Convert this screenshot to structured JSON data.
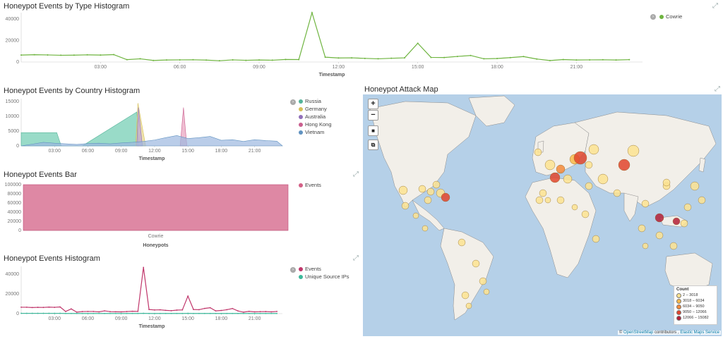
{
  "panels": {
    "type_hist": {
      "title": "Honeypot Events by Type Histogram",
      "xlabel": "Timestamp"
    },
    "country_hist": {
      "title": "Honeypot Events by Country Histogram",
      "xlabel": "Timestamp"
    },
    "bar": {
      "title": "Honeypot Events Bar",
      "xlabel": "Honeypots"
    },
    "events_hist": {
      "title": "Honeypot Events Histogram",
      "xlabel": "Timestamp"
    },
    "map": {
      "title": "Honeypot Attack Map"
    }
  },
  "map": {
    "zoom_in": "+",
    "zoom_out": "−",
    "draw_rect": "■",
    "crop": "⧉",
    "legend_title": "Count",
    "legend": [
      {
        "label": "2 – 3018",
        "color": "#fde391"
      },
      {
        "label": "3018 – 6034",
        "color": "#f9b94a"
      },
      {
        "label": "6034 – 9050",
        "color": "#f48a3a"
      },
      {
        "label": "9050 – 12066",
        "color": "#e2452d"
      },
      {
        "label": "12066 – 15082",
        "color": "#b41e36"
      }
    ],
    "attribution_prefix": "© ",
    "attribution_osm": "OpenStreetMap",
    "attribution_mid": " contributors , ",
    "attribution_ems": "Elastic Maps Service"
  },
  "chart_data": [
    {
      "type": "line",
      "title": "Honeypot Events by Type Histogram",
      "xlabel": "Timestamp",
      "ylabel": "",
      "x_ticks": [
        "03:00",
        "06:00",
        "09:00",
        "12:00",
        "15:00",
        "18:00",
        "21:00"
      ],
      "y_ticks": [
        0,
        20000,
        40000
      ],
      "ylim": [
        0,
        46000
      ],
      "xlim": [
        0,
        23.5
      ],
      "x": [
        0,
        0.5,
        1,
        1.5,
        2,
        2.5,
        3,
        3.5,
        4,
        4.5,
        5,
        5.5,
        6,
        6.5,
        7,
        7.5,
        8,
        8.5,
        9,
        9.5,
        10,
        10.5,
        11,
        11.5,
        12,
        12.5,
        13,
        13.5,
        14,
        14.5,
        15,
        15.5,
        16,
        16.5,
        17,
        17.5,
        18,
        18.5,
        19,
        19.5,
        20,
        20.5,
        21,
        21.5,
        22,
        22.5,
        23
      ],
      "series": [
        {
          "name": "Cowrie",
          "color": "#6eb43f",
          "values": [
            6500,
            6800,
            6600,
            6300,
            6400,
            6700,
            6500,
            6900,
            2200,
            3000,
            1500,
            1900,
            2000,
            2100,
            1800,
            1200,
            2000,
            1600,
            1900,
            1700,
            2400,
            2300,
            46000,
            4500,
            3800,
            3900,
            3400,
            3000,
            3500,
            3900,
            17500,
            4300,
            4200,
            5200,
            6100,
            3000,
            3300,
            4100,
            5100,
            2800,
            1400,
            2300,
            1900,
            2000,
            2100,
            1900,
            2200
          ]
        }
      ],
      "legend_placement": "right"
    },
    {
      "type": "area",
      "title": "Honeypot Events by Country Histogram",
      "xlabel": "Timestamp",
      "x_ticks": [
        "03:00",
        "06:00",
        "09:00",
        "12:00",
        "15:00",
        "18:00",
        "21:00"
      ],
      "y_ticks": [
        0,
        5000,
        10000,
        15000
      ],
      "ylim": [
        0,
        16000
      ],
      "xlim": [
        0,
        23.5
      ],
      "series": [
        {
          "name": "Russia",
          "color": "#54b399",
          "fill": "#6dccb1",
          "points": [
            [
              0,
              4500
            ],
            [
              3.2,
              4500
            ],
            [
              3.6,
              0
            ],
            [
              5.5,
              0
            ],
            [
              10.4,
              11500
            ],
            [
              10.6,
              0
            ]
          ]
        },
        {
          "name": "Germany",
          "color": "#d6bf57",
          "fill": "#e7d68a",
          "points": [
            [
              10.3,
              0
            ],
            [
              10.5,
              14500
            ],
            [
              11.2,
              0
            ]
          ]
        },
        {
          "name": "Australia",
          "color": "#9170b8",
          "fill": "#b9a4d6",
          "points": [
            [
              10.4,
              0
            ],
            [
              10.55,
              13000
            ],
            [
              10.9,
              0
            ]
          ]
        },
        {
          "name": "Hong Kong",
          "color": "#ca5f8f",
          "fill": "#e8a1bd",
          "points": [
            [
              14.3,
              0
            ],
            [
              14.6,
              13000
            ],
            [
              14.9,
              0
            ]
          ]
        },
        {
          "name": "Vietnam",
          "color": "#6092c0",
          "fill": "#9cb8e0",
          "points": [
            [
              0,
              0
            ],
            [
              1,
              600
            ],
            [
              2,
              1200
            ],
            [
              3,
              900
            ],
            [
              4,
              700
            ],
            [
              5,
              500
            ],
            [
              6,
              800
            ],
            [
              7,
              900
            ],
            [
              8,
              700
            ],
            [
              9,
              1000
            ],
            [
              10,
              1200
            ],
            [
              11,
              1500
            ],
            [
              12,
              2000
            ],
            [
              13,
              2800
            ],
            [
              14,
              3500
            ],
            [
              15,
              2500
            ],
            [
              16,
              2800
            ],
            [
              17,
              3200
            ],
            [
              18,
              1900
            ],
            [
              19,
              2100
            ],
            [
              20,
              1500
            ],
            [
              21,
              2100
            ],
            [
              22,
              1800
            ],
            [
              23,
              1600
            ],
            [
              23.5,
              0
            ]
          ]
        }
      ],
      "legend_placement": "right"
    },
    {
      "type": "bar",
      "title": "Honeypot Events Bar",
      "xlabel": "Honeypots",
      "categories": [
        "Cowrie"
      ],
      "y_ticks": [
        0,
        20000,
        40000,
        60000,
        80000,
        100000
      ],
      "ylim": [
        0,
        100000
      ],
      "series": [
        {
          "name": "Events",
          "color": "#d36086",
          "values": [
            100000
          ]
        }
      ],
      "legend_placement": "right"
    },
    {
      "type": "line",
      "title": "Honeypot Events Histogram",
      "xlabel": "Timestamp",
      "x_ticks": [
        "03:00",
        "06:00",
        "09:00",
        "12:00",
        "15:00",
        "18:00",
        "21:00"
      ],
      "y_ticks": [
        0,
        20000,
        40000
      ],
      "ylim": [
        0,
        48000
      ],
      "xlim": [
        0,
        23.5
      ],
      "x": [
        0,
        0.5,
        1,
        1.5,
        2,
        2.5,
        3,
        3.5,
        4,
        4.5,
        5,
        5.5,
        6,
        6.5,
        7,
        7.5,
        8,
        8.5,
        9,
        9.5,
        10,
        10.5,
        11,
        11.5,
        12,
        12.5,
        13,
        13.5,
        14,
        14.5,
        15,
        15.5,
        16,
        16.5,
        17,
        17.5,
        18,
        18.5,
        19,
        19.5,
        20,
        20.5,
        21,
        21.5,
        22,
        22.5,
        23
      ],
      "series": [
        {
          "name": "Events",
          "color": "#c0366b",
          "values": [
            6500,
            6500,
            6200,
            6400,
            6300,
            6600,
            6400,
            6800,
            2200,
            4800,
            1500,
            2100,
            2200,
            2200,
            1800,
            2800,
            2000,
            1900,
            1800,
            2100,
            2400,
            2300,
            47000,
            4200,
            3700,
            3900,
            3300,
            3000,
            3600,
            3800,
            17800,
            4200,
            4000,
            5300,
            6000,
            2800,
            3200,
            4000,
            5200,
            2700,
            1500,
            2300,
            1800,
            2000,
            2100,
            1800,
            2200
          ]
        },
        {
          "name": "Unique Source IPs",
          "color": "#3cb89a",
          "values": [
            300,
            300,
            300,
            300,
            300,
            300,
            300,
            300,
            200,
            200,
            200,
            200,
            200,
            200,
            200,
            200,
            200,
            200,
            200,
            200,
            200,
            200,
            300,
            200,
            200,
            200,
            200,
            200,
            200,
            200,
            300,
            200,
            200,
            200,
            200,
            200,
            200,
            200,
            200,
            200,
            200,
            200,
            200,
            200,
            200,
            200,
            200
          ]
        }
      ],
      "legend_placement": "right"
    }
  ]
}
